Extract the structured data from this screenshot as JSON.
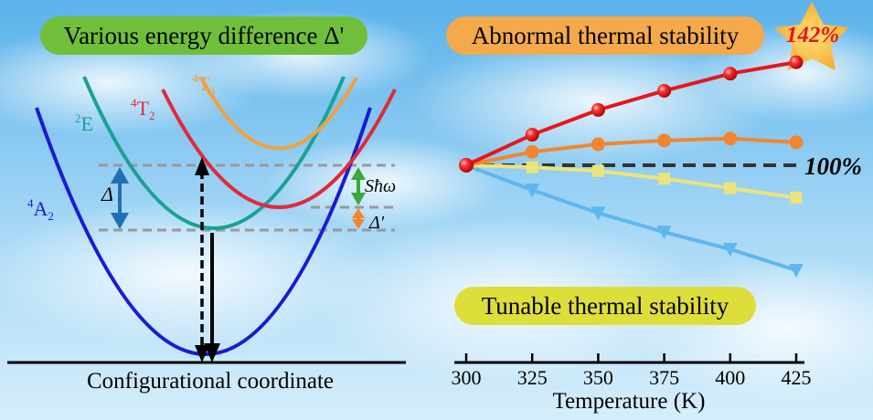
{
  "banners": {
    "energy": "Various energy difference Δ'",
    "abnormal": "Abnormal thermal stability",
    "tunable": "Tunable thermal stability"
  },
  "star_value": "142%",
  "diagram": {
    "xlabel": "Configurational coordinate",
    "states": [
      {
        "name": "4A2",
        "sup": "4",
        "base": "A",
        "sub": "2",
        "color": "#1a1ad6"
      },
      {
        "name": "2E",
        "sup": "2",
        "base": "E",
        "sub": "",
        "color": "#17a295"
      },
      {
        "name": "4T2",
        "sup": "4",
        "base": "T",
        "sub": "2",
        "color": "#e02a3a"
      },
      {
        "name": "4T1",
        "sup": "4",
        "base": "T",
        "sub": "1",
        "color": "#f0a040"
      }
    ],
    "delta_label": "Δ",
    "delta_prime_label": "Δ'",
    "shw_label": "Sħω"
  },
  "chart_data": {
    "type": "line",
    "xlabel": "Temperature (K)",
    "x": [
      300,
      325,
      350,
      375,
      400,
      425
    ],
    "xticks": [
      "300",
      "325",
      "350",
      "375",
      "400",
      "425"
    ],
    "reference_label": "100%",
    "series": [
      {
        "values": [
          100,
          116,
          129,
          139,
          148,
          154
        ],
        "color": "#e8161c",
        "marker": "sphere"
      },
      {
        "values": [
          100,
          107,
          111,
          113,
          114,
          112
        ],
        "color": "#f2862e",
        "marker": "circle"
      },
      {
        "values": [
          100,
          99,
          97,
          93,
          88,
          83
        ],
        "color": "#ece37a",
        "marker": "square"
      },
      {
        "values": [
          100,
          87,
          75,
          65,
          56,
          45
        ],
        "color": "#5fb6ef",
        "marker": "triangle-down"
      }
    ]
  }
}
